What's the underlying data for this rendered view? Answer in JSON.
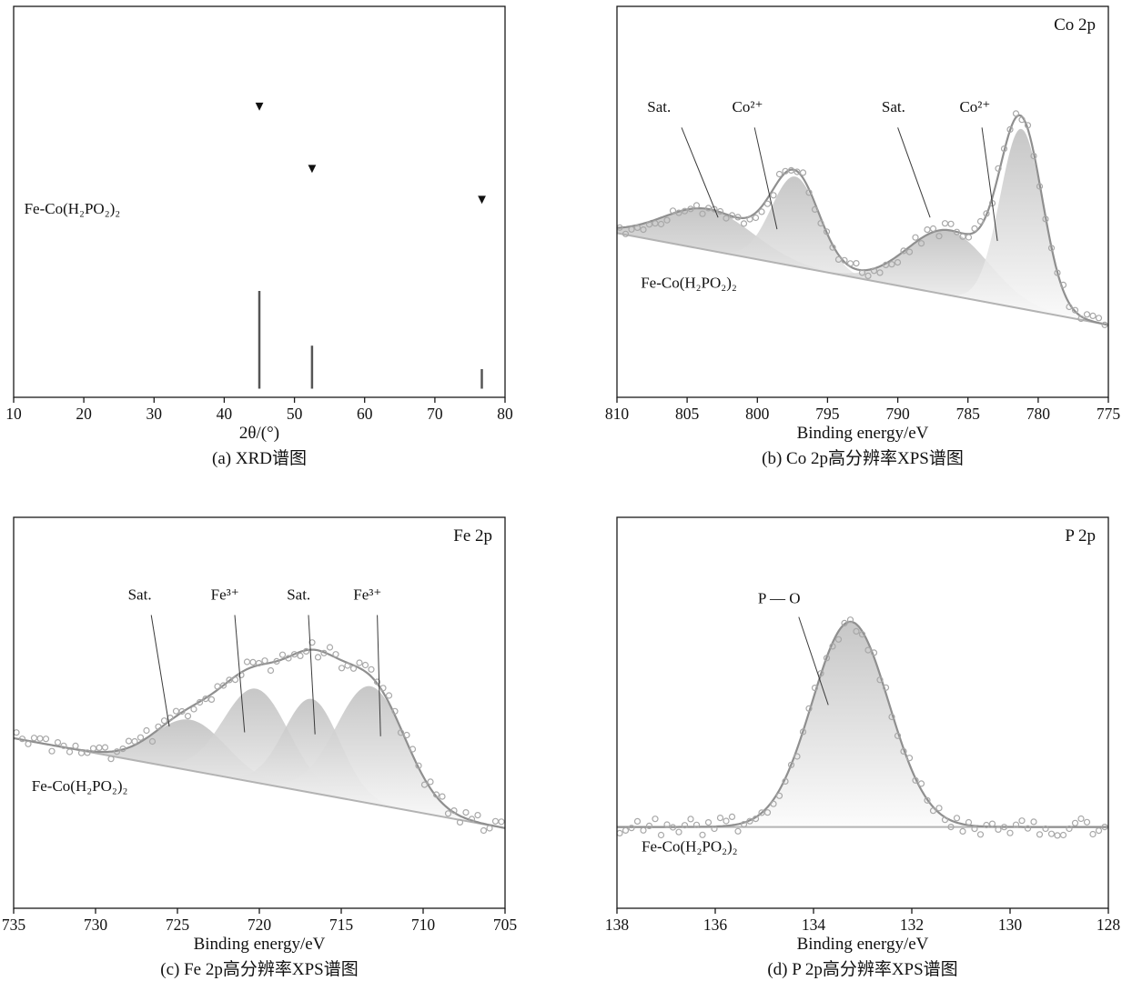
{
  "figure": {
    "colors": {
      "trace": "#8a8a8a",
      "fit_line": "#8f8f8f",
      "background_line": "#b3b3b3",
      "scatter_stroke": "#a8a8a8",
      "component_fill_top": "#bdbdbd",
      "component_fill_bottom": "#fbfbfb",
      "axis": "#1a1a1a",
      "text": "#111111",
      "stick": "#555555",
      "marker": "#111111",
      "annotation_line": "#3a3a3a"
    }
  },
  "chart_data": [
    {
      "id": "a",
      "kind": "xrd",
      "type": "line",
      "caption": "(a) XRD谱图",
      "xlabel": "2θ/(°)",
      "xlim": [
        10,
        80
      ],
      "xticks": [
        10,
        20,
        30,
        40,
        50,
        60,
        70,
        80
      ],
      "sample_label": "Fe-Co(H₂PO₂)₂",
      "sample_label_pos": [
        11.5,
        0.47
      ],
      "baseline_intensity": 0.41,
      "noise_amplitude": 0.012,
      "peak_marker": "▼",
      "peaks": [
        {
          "two_theta": 45.0,
          "amplitude": 0.305,
          "sigma": 0.35
        },
        {
          "two_theta": 52.5,
          "amplitude": 0.146,
          "sigma": 0.35
        },
        {
          "two_theta": 76.7,
          "amplitude": 0.067,
          "sigma": 0.3
        }
      ],
      "reference_sticks": {
        "base_intensity": 0.022,
        "sticks": [
          {
            "two_theta": 45.0,
            "height": 0.25
          },
          {
            "two_theta": 52.5,
            "height": 0.11
          },
          {
            "two_theta": 76.7,
            "height": 0.05
          }
        ]
      }
    },
    {
      "id": "b",
      "kind": "xps",
      "type": "scatter",
      "corner_label": "Co 2p",
      "caption": "(b) Co 2p高分辨率XPS谱图",
      "xlabel": "Binding energy/eV",
      "xlim": [
        810,
        775
      ],
      "xticks": [
        810,
        805,
        800,
        795,
        790,
        785,
        780,
        775
      ],
      "sample_label": "Fe-Co(H₂PO₂)₂",
      "sample_label_pos": [
        808.3,
        0.28
      ],
      "noise_amplitude": 0.018,
      "background": {
        "left_intensity": 0.42,
        "right_intensity": 0.185
      },
      "components": [
        {
          "assignment": "Sat.",
          "center": 803.5,
          "amplitude": 0.105,
          "sigma": 3.2
        },
        {
          "assignment": "Co²⁺",
          "center": 797.3,
          "amplitude": 0.23,
          "sigma": 1.7
        },
        {
          "assignment": "Sat.",
          "center": 786.4,
          "amplitude": 0.165,
          "sigma": 2.9
        },
        {
          "assignment": "Co²⁺",
          "center": 781.2,
          "amplitude": 0.46,
          "sigma": 1.5
        }
      ],
      "annotations": [
        {
          "text": "Sat.",
          "tx": 807.0,
          "ty": 0.73,
          "line": [
            805.4,
            0.69,
            802.8,
            0.46
          ]
        },
        {
          "text": "Co²⁺",
          "tx": 800.7,
          "ty": 0.73,
          "line": [
            800.2,
            0.69,
            798.6,
            0.43
          ]
        },
        {
          "text": "Sat.",
          "tx": 790.3,
          "ty": 0.73,
          "line": [
            790.0,
            0.69,
            787.7,
            0.46
          ]
        },
        {
          "text": "Co²⁺",
          "tx": 784.5,
          "ty": 0.73,
          "line": [
            784.0,
            0.69,
            782.9,
            0.4
          ]
        }
      ]
    },
    {
      "id": "c",
      "kind": "xps",
      "type": "scatter",
      "corner_label": "Fe 2p",
      "caption": "(c) Fe 2p高分辨率XPS谱图",
      "xlabel": "Binding energy/eV",
      "xlim": [
        735,
        705
      ],
      "xticks": [
        735,
        730,
        725,
        720,
        715,
        710,
        705
      ],
      "sample_label": "Fe-Co(H₂PO₂)₂",
      "sample_label_pos": [
        733.9,
        0.3
      ],
      "noise_amplitude": 0.02,
      "background": {
        "left_intensity": 0.435,
        "right_intensity": 0.205
      },
      "components": [
        {
          "assignment": "Sat.",
          "center": 724.2,
          "amplitude": 0.13,
          "sigma": 2.2
        },
        {
          "assignment": "Fe³⁺",
          "center": 720.2,
          "amplitude": 0.24,
          "sigma": 2.0
        },
        {
          "assignment": "Sat.",
          "center": 716.8,
          "amplitude": 0.24,
          "sigma": 1.7
        },
        {
          "assignment": "Fe³⁺",
          "center": 713.2,
          "amplitude": 0.3,
          "sigma": 2.1
        }
      ],
      "annotations": [
        {
          "text": "Sat.",
          "tx": 727.3,
          "ty": 0.79,
          "line": [
            726.6,
            0.75,
            725.5,
            0.465
          ]
        },
        {
          "text": "Fe³⁺",
          "tx": 722.1,
          "ty": 0.79,
          "line": [
            721.5,
            0.75,
            720.9,
            0.45
          ]
        },
        {
          "text": "Sat.",
          "tx": 717.6,
          "ty": 0.79,
          "line": [
            717.0,
            0.75,
            716.6,
            0.445
          ]
        },
        {
          "text": "Fe³⁺",
          "tx": 713.4,
          "ty": 0.79,
          "line": [
            712.8,
            0.75,
            712.6,
            0.44
          ]
        }
      ]
    },
    {
      "id": "d",
      "kind": "xps",
      "type": "scatter",
      "corner_label": "P 2p",
      "caption": "(d) P 2p高分辨率XPS谱图",
      "xlabel": "Binding energy/eV",
      "xlim": [
        138,
        128
      ],
      "xticks": [
        138,
        136,
        134,
        132,
        130,
        128
      ],
      "sample_label": "Fe-Co(H₂PO₂)₂",
      "sample_label_pos": [
        137.5,
        0.145
      ],
      "noise_amplitude": 0.022,
      "background": {
        "left_intensity": 0.208,
        "right_intensity": 0.208
      },
      "components": [
        {
          "assignment": "P—O",
          "center": 133.25,
          "amplitude": 0.525,
          "sigma": 0.78
        }
      ],
      "annotations": [
        {
          "text": "P — O",
          "tx": 134.7,
          "ty": 0.78,
          "line": [
            134.3,
            0.745,
            133.7,
            0.52
          ]
        }
      ]
    }
  ]
}
